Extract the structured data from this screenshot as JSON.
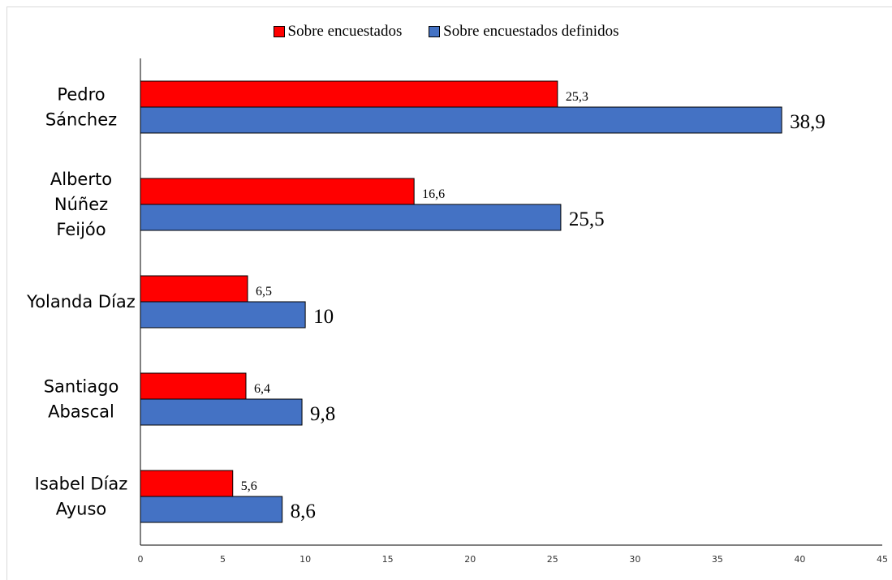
{
  "chart_data": {
    "type": "bar",
    "orientation": "horizontal",
    "categories": [
      [
        "Pedro",
        "Sánchez"
      ],
      [
        "Alberto",
        "Núñez",
        "Feijóo"
      ],
      [
        "Yolanda Díaz"
      ],
      [
        "Santiago",
        "Abascal"
      ],
      [
        "Isabel Díaz",
        "Ayuso"
      ]
    ],
    "series": [
      {
        "name": "Sobre encuestados",
        "color": "#ff0000",
        "values": [
          25.3,
          16.6,
          6.5,
          6.4,
          5.6
        ],
        "labels": [
          "25,3",
          "16,6",
          "6,5",
          "6,4",
          "5,6"
        ]
      },
      {
        "name": "Sobre encuestados definidos",
        "color": "#4472c4",
        "values": [
          38.9,
          25.5,
          10,
          9.8,
          8.6
        ],
        "labels": [
          "38,9",
          "25,5",
          "10",
          "9,8",
          "8,6"
        ]
      }
    ],
    "xlim": [
      0,
      45
    ],
    "xticks": [
      "0",
      "5",
      "10",
      "15",
      "20",
      "25",
      "30",
      "35",
      "40",
      "45"
    ],
    "title": "",
    "xlabel": "",
    "ylabel": "",
    "legend": "top-center",
    "grid": false
  }
}
